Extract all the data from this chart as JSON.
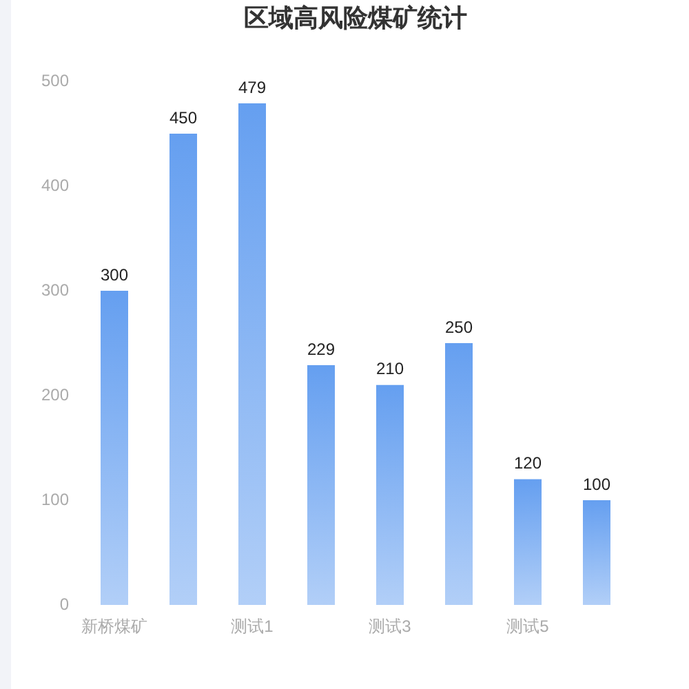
{
  "chart_data": {
    "type": "bar",
    "title": "区域高风险煤矿统计",
    "categories": [
      "新桥煤矿",
      null,
      "测试1",
      null,
      "测试3",
      null,
      "测试5",
      null
    ],
    "values": [
      300,
      450,
      479,
      229,
      210,
      250,
      120,
      100
    ],
    "color": "#659ff0",
    "ylim": [
      0,
      500
    ],
    "yticks": [
      0,
      100,
      200,
      300,
      400,
      500
    ],
    "grid": false,
    "data_labels": true
  }
}
